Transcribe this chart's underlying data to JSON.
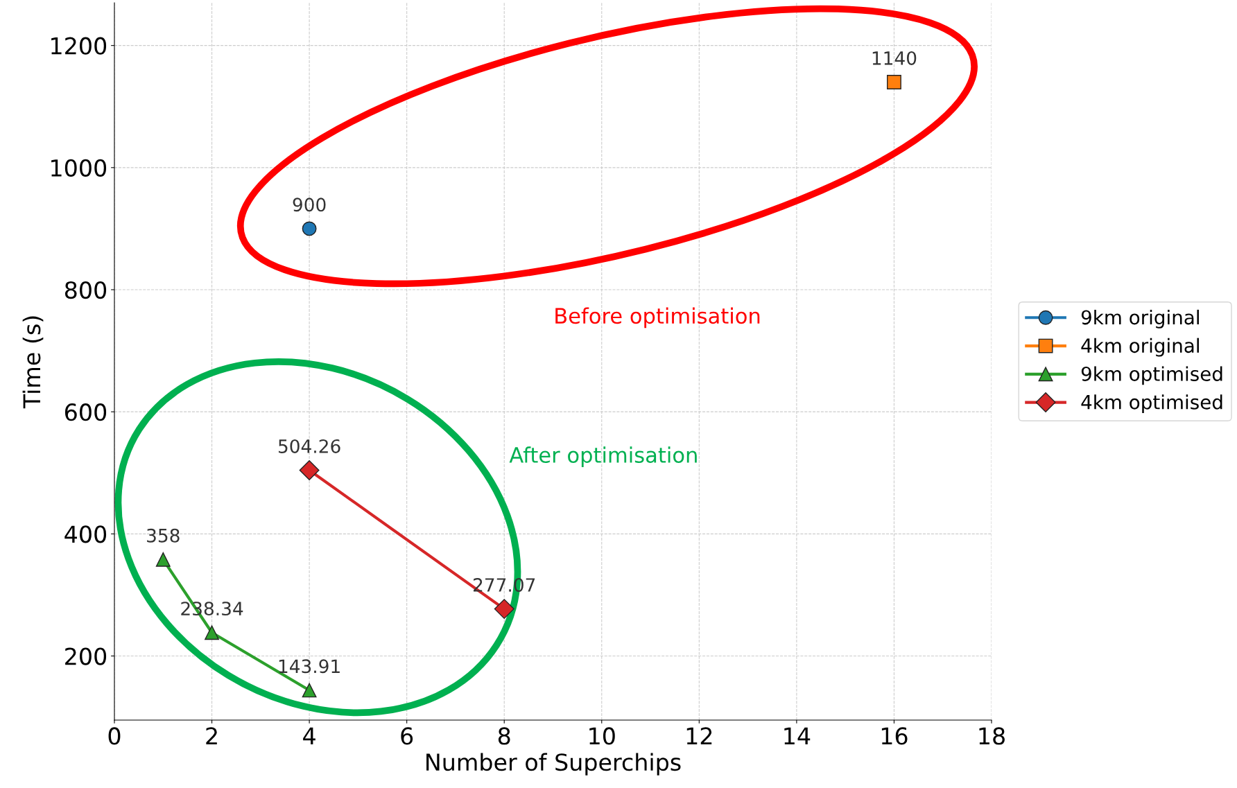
{
  "chart_data": {
    "type": "line",
    "xlabel": "Number of Superchips",
    "ylabel": "Time (s)",
    "series": [
      {
        "name": "9km original",
        "color": "#1f77b4",
        "marker": "circle",
        "x": [
          4
        ],
        "values": [
          900
        ]
      },
      {
        "name": "4km original",
        "color": "#ff7f0e",
        "marker": "square",
        "x": [
          16
        ],
        "values": [
          1140
        ]
      },
      {
        "name": "9km optimised",
        "color": "#2ca02c",
        "marker": "triangle",
        "x": [
          1,
          2,
          4
        ],
        "values": [
          358,
          238.34,
          143.91
        ]
      },
      {
        "name": "4km optimised",
        "color": "#d62728",
        "marker": "diamond",
        "x": [
          4,
          8
        ],
        "values": [
          504.26,
          277.07
        ]
      }
    ],
    "data_labels": true,
    "xlim": [
      0,
      18
    ],
    "xticks": [
      0,
      2,
      4,
      6,
      8,
      10,
      12,
      14,
      16,
      18
    ],
    "ylim": [
      95,
      1270
    ],
    "yticks": [
      200,
      400,
      600,
      800,
      1000,
      1200
    ],
    "grid": true,
    "legend": "right",
    "annotations": [
      "Before optimisation",
      "After optimisation"
    ]
  }
}
